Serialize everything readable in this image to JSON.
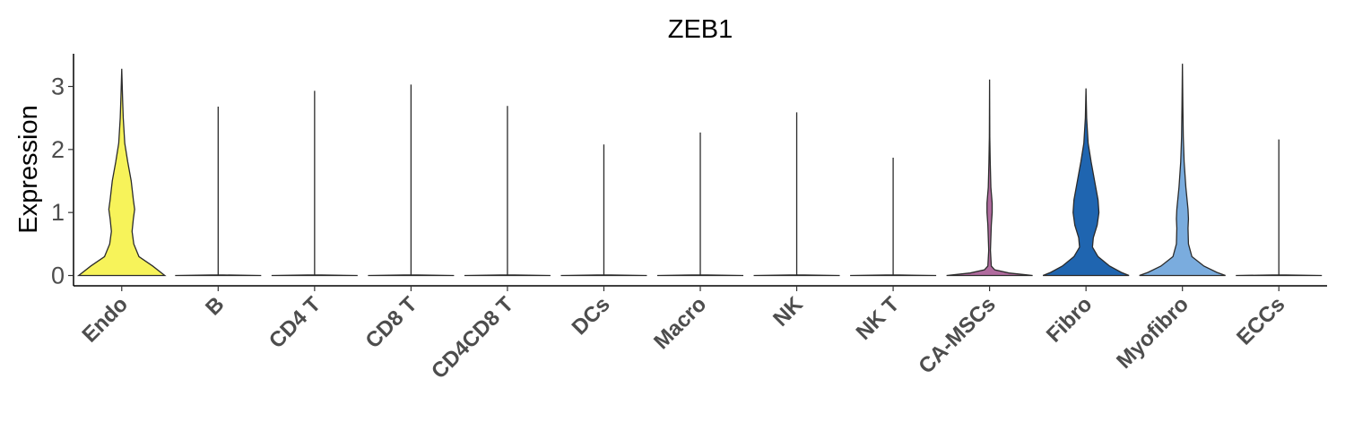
{
  "chart_data": {
    "type": "violin",
    "title": "ZEB1",
    "xlabel": "",
    "ylabel": "Expression",
    "ylim": [
      -0.18,
      3.5
    ],
    "yticks": [
      0,
      1,
      2,
      3
    ],
    "grid": false,
    "legend": "none",
    "categories": [
      "Endo",
      "B",
      "CD4 T",
      "CD8 T",
      "CD4CD8 T",
      "DCs",
      "Macro",
      "NK",
      "NK T",
      "CA-MSCs",
      "Fibro",
      "Myofibro",
      "ECCs"
    ],
    "max_values": [
      3.28,
      2.68,
      2.93,
      3.03,
      2.69,
      2.08,
      2.27,
      2.59,
      1.87,
      3.11,
      2.97,
      3.36,
      2.16
    ],
    "colors": [
      "#F7F35A",
      "#6B8E4E",
      "#E8A33D",
      "#C65A4A",
      "#8C5A9E",
      "#4FA3A5",
      "#D66FA0",
      "#6E6ABF",
      "#9C8C3A",
      "#B06B9E",
      "#1F65B0",
      "#7AACDE",
      "#9EC6E8"
    ],
    "density_profiles": [
      [
        [
          0,
          1
        ],
        [
          0.15,
          0.72
        ],
        [
          0.3,
          0.4
        ],
        [
          0.5,
          0.28
        ],
        [
          0.7,
          0.24
        ],
        [
          0.9,
          0.27
        ],
        [
          1.05,
          0.3
        ],
        [
          1.2,
          0.27
        ],
        [
          1.5,
          0.22
        ],
        [
          1.8,
          0.14
        ],
        [
          2.1,
          0.07
        ],
        [
          2.5,
          0.035
        ],
        [
          2.8,
          0.02
        ],
        [
          3.28,
          0
        ]
      ],
      [
        [
          0,
          1
        ],
        [
          0.01,
          0
        ],
        [
          2.68,
          0
        ]
      ],
      [
        [
          0,
          1
        ],
        [
          0.01,
          0
        ],
        [
          2.93,
          0
        ]
      ],
      [
        [
          0,
          1
        ],
        [
          0.01,
          0
        ],
        [
          3.03,
          0
        ]
      ],
      [
        [
          0,
          1
        ],
        [
          0.01,
          0
        ],
        [
          2.69,
          0
        ]
      ],
      [
        [
          0,
          1
        ],
        [
          0.01,
          0
        ],
        [
          2.08,
          0
        ]
      ],
      [
        [
          0,
          1
        ],
        [
          0.01,
          0
        ],
        [
          2.27,
          0
        ]
      ],
      [
        [
          0,
          1
        ],
        [
          0.01,
          0
        ],
        [
          2.59,
          0
        ]
      ],
      [
        [
          0,
          1
        ],
        [
          0.01,
          0
        ],
        [
          1.87,
          0
        ]
      ],
      [
        [
          0,
          1
        ],
        [
          0.04,
          0.45
        ],
        [
          0.09,
          0.12
        ],
        [
          0.15,
          0.04
        ],
        [
          0.4,
          0.02
        ],
        [
          0.8,
          0.04
        ],
        [
          1.0,
          0.06
        ],
        [
          1.15,
          0.06
        ],
        [
          1.4,
          0.03
        ],
        [
          1.8,
          0.015
        ],
        [
          2.2,
          0.005
        ],
        [
          3.11,
          0
        ]
      ],
      [
        [
          0,
          1
        ],
        [
          0.05,
          0.82
        ],
        [
          0.15,
          0.55
        ],
        [
          0.3,
          0.28
        ],
        [
          0.45,
          0.15
        ],
        [
          0.6,
          0.17
        ],
        [
          0.8,
          0.26
        ],
        [
          1.0,
          0.3
        ],
        [
          1.2,
          0.28
        ],
        [
          1.5,
          0.2
        ],
        [
          1.8,
          0.12
        ],
        [
          2.1,
          0.05
        ],
        [
          2.5,
          0.015
        ],
        [
          2.97,
          0
        ]
      ],
      [
        [
          0,
          1
        ],
        [
          0.05,
          0.8
        ],
        [
          0.15,
          0.5
        ],
        [
          0.3,
          0.22
        ],
        [
          0.5,
          0.14
        ],
        [
          0.75,
          0.13
        ],
        [
          0.9,
          0.14
        ],
        [
          1.05,
          0.13
        ],
        [
          1.4,
          0.08
        ],
        [
          1.8,
          0.04
        ],
        [
          2.2,
          0.02
        ],
        [
          2.7,
          0.01
        ],
        [
          3.36,
          0
        ]
      ],
      [
        [
          0,
          1
        ],
        [
          0.01,
          0
        ],
        [
          2.16,
          0
        ]
      ]
    ]
  }
}
